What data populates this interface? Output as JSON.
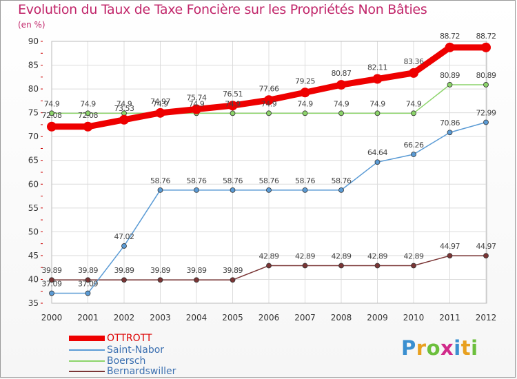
{
  "title": "Evolution du Taux de Taxe Foncière sur les Propriétés Non Bâties",
  "unit_label": "(en %)",
  "logo": {
    "text": "Proxiti",
    "letter_colors": [
      "#3a8fd0",
      "#e8a020",
      "#6cbf3c",
      "#d12a8a",
      "#3a8fd0",
      "#e8a020",
      "#6cbf3c"
    ]
  },
  "chart_data": {
    "type": "line",
    "title": "Evolution du Taux de Taxe Foncière sur les Propriétés Non Bâties",
    "ylabel": "(en %)",
    "xlabel": "",
    "ylim": [
      35,
      90
    ],
    "yticks": [
      35,
      40,
      45,
      50,
      55,
      60,
      65,
      70,
      75,
      80,
      85,
      90
    ],
    "categories": [
      "2000",
      "2001",
      "2002",
      "2003",
      "2004",
      "2005",
      "2006",
      "2007",
      "2008",
      "2009",
      "2010",
      "2011",
      "2012"
    ],
    "grid": true,
    "legend_position": "bottom-left",
    "series": [
      {
        "name": "OTTROTT",
        "color": "#ee0000",
        "values": [
          72.08,
          72.08,
          73.53,
          74.97,
          75.74,
          76.51,
          77.66,
          79.25,
          80.87,
          82.11,
          83.36,
          88.72,
          88.72
        ],
        "labels": [
          "72.08",
          "72.08",
          "73.53",
          "74.97",
          "75.74",
          "76.51",
          "77.66",
          "79.25",
          "80.87",
          "82.11",
          "83.36",
          "88.72",
          "88.72"
        ]
      },
      {
        "name": "Saint-Nabor",
        "color": "#5b9bd5",
        "values": [
          37.09,
          37.09,
          47.02,
          58.76,
          58.76,
          58.76,
          58.76,
          58.76,
          58.76,
          64.64,
          66.26,
          70.86,
          72.99
        ],
        "labels": [
          "37.09",
          "37.09",
          "47.02",
          "58.76",
          "58.76",
          "58.76",
          "58.76",
          "58.76",
          "58.76",
          "64.64",
          "66.26",
          "70.86",
          "72.99"
        ]
      },
      {
        "name": "Boersch",
        "color": "#8cd46a",
        "values": [
          74.9,
          74.9,
          74.9,
          74.9,
          74.9,
          74.9,
          74.9,
          74.9,
          74.9,
          74.9,
          74.9,
          80.89,
          80.89
        ],
        "labels": [
          "74.9",
          "74.9",
          "74.9",
          "74.9",
          "74.9",
          "74.9",
          "74.9",
          "74.9",
          "74.9",
          "74.9",
          "74.9",
          "80.89",
          "80.89"
        ]
      },
      {
        "name": "Bernardswiller",
        "color": "#7a3535",
        "values": [
          39.89,
          39.89,
          39.89,
          39.89,
          39.89,
          39.89,
          42.89,
          42.89,
          42.89,
          42.89,
          42.89,
          44.97,
          44.97
        ],
        "labels": [
          "39.89",
          "39.89",
          "39.89",
          "39.89",
          "39.89",
          "39.89",
          "42.89",
          "42.89",
          "42.89",
          "42.89",
          "42.89",
          "44.97",
          "44.97"
        ]
      }
    ]
  }
}
